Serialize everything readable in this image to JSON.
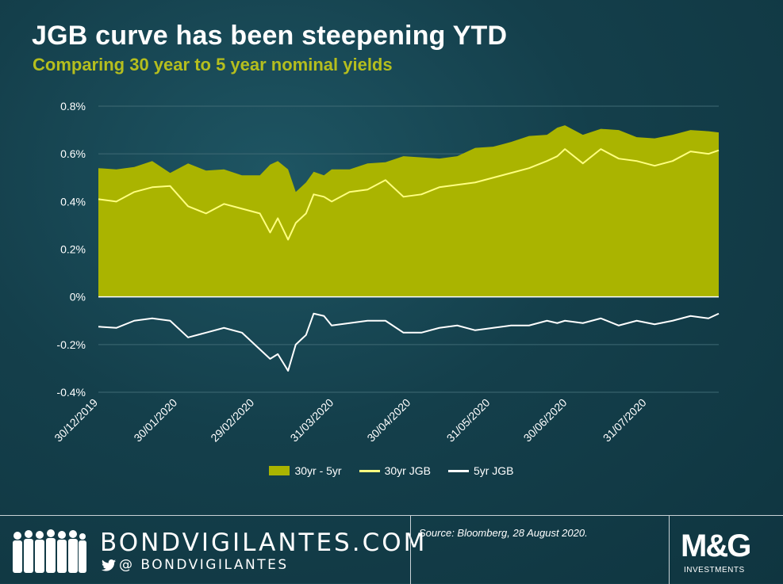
{
  "header": {
    "title": "JGB curve has been steepening YTD",
    "subtitle": "Comparing 30 year to 5 year nominal yields"
  },
  "colors": {
    "area": "#aab400",
    "line30": "#ffff80",
    "line5": "#ffffff",
    "subtitle": "#b5be1e",
    "background": "#143f4b"
  },
  "chart_data": {
    "type": "area",
    "title": "JGB curve has been steepening YTD",
    "subtitle": "Comparing 30 year to 5 year nominal yields",
    "ylim": [
      -0.4,
      0.8
    ],
    "ytick_labels": [
      "0.8%",
      "0.6%",
      "0.4%",
      "0.2%",
      "0%",
      "-0.2%",
      "-0.4%"
    ],
    "ytick_values": [
      0.8,
      0.6,
      0.4,
      0.2,
      0,
      -0.2,
      -0.4
    ],
    "xtick_labels": [
      "30/12/2019",
      "30/01/2020",
      "29/02/2020",
      "31/03/2020",
      "30/04/2020",
      "31/05/2020",
      "30/06/2020",
      "31/07/2020"
    ],
    "xtick_dates": [
      "2019-12-30",
      "2020-01-30",
      "2020-02-29",
      "2020-03-31",
      "2020-04-30",
      "2020-05-31",
      "2020-06-30",
      "2020-07-31"
    ],
    "xlim": [
      "2019-12-30",
      "2020-08-28"
    ],
    "grid": true,
    "legend_position": "bottom",
    "series": [
      {
        "name": "30yr - 5yr",
        "kind": "area",
        "x": [
          "2019-12-30",
          "2020-01-06",
          "2020-01-13",
          "2020-01-20",
          "2020-01-27",
          "2020-02-03",
          "2020-02-10",
          "2020-02-17",
          "2020-02-24",
          "2020-03-02",
          "2020-03-06",
          "2020-03-09",
          "2020-03-13",
          "2020-03-16",
          "2020-03-20",
          "2020-03-23",
          "2020-03-27",
          "2020-03-30",
          "2020-04-06",
          "2020-04-13",
          "2020-04-20",
          "2020-04-27",
          "2020-05-04",
          "2020-05-11",
          "2020-05-18",
          "2020-05-25",
          "2020-06-01",
          "2020-06-08",
          "2020-06-15",
          "2020-06-22",
          "2020-06-26",
          "2020-06-29",
          "2020-07-06",
          "2020-07-13",
          "2020-07-20",
          "2020-07-27",
          "2020-08-03",
          "2020-08-10",
          "2020-08-17",
          "2020-08-24",
          "2020-08-28"
        ],
        "values": [
          0.54,
          0.535,
          0.545,
          0.57,
          0.52,
          0.56,
          0.53,
          0.535,
          0.51,
          0.51,
          0.555,
          0.57,
          0.535,
          0.44,
          0.48,
          0.525,
          0.51,
          0.535,
          0.535,
          0.56,
          0.565,
          0.59,
          0.585,
          0.58,
          0.59,
          0.625,
          0.63,
          0.65,
          0.675,
          0.68,
          0.71,
          0.72,
          0.68,
          0.705,
          0.7,
          0.67,
          0.665,
          0.68,
          0.7,
          0.695,
          0.69
        ]
      },
      {
        "name": "30yr JGB",
        "kind": "line",
        "x": [
          "2019-12-30",
          "2020-01-06",
          "2020-01-13",
          "2020-01-20",
          "2020-01-27",
          "2020-02-03",
          "2020-02-10",
          "2020-02-17",
          "2020-02-24",
          "2020-03-02",
          "2020-03-06",
          "2020-03-09",
          "2020-03-13",
          "2020-03-16",
          "2020-03-20",
          "2020-03-23",
          "2020-03-27",
          "2020-03-30",
          "2020-04-06",
          "2020-04-13",
          "2020-04-20",
          "2020-04-27",
          "2020-05-04",
          "2020-05-11",
          "2020-05-18",
          "2020-05-25",
          "2020-06-01",
          "2020-06-08",
          "2020-06-15",
          "2020-06-22",
          "2020-06-26",
          "2020-06-29",
          "2020-07-06",
          "2020-07-13",
          "2020-07-20",
          "2020-07-27",
          "2020-08-03",
          "2020-08-10",
          "2020-08-17",
          "2020-08-24",
          "2020-08-28"
        ],
        "values": [
          0.41,
          0.4,
          0.44,
          0.46,
          0.465,
          0.38,
          0.35,
          0.39,
          0.37,
          0.35,
          0.27,
          0.33,
          0.24,
          0.31,
          0.35,
          0.43,
          0.42,
          0.4,
          0.44,
          0.45,
          0.49,
          0.42,
          0.43,
          0.46,
          0.47,
          0.48,
          0.5,
          0.52,
          0.54,
          0.57,
          0.59,
          0.62,
          0.56,
          0.62,
          0.58,
          0.57,
          0.55,
          0.57,
          0.61,
          0.6,
          0.615
        ]
      },
      {
        "name": "5yr JGB",
        "kind": "line",
        "x": [
          "2019-12-30",
          "2020-01-06",
          "2020-01-13",
          "2020-01-20",
          "2020-01-27",
          "2020-02-03",
          "2020-02-10",
          "2020-02-17",
          "2020-02-24",
          "2020-03-02",
          "2020-03-06",
          "2020-03-09",
          "2020-03-13",
          "2020-03-16",
          "2020-03-20",
          "2020-03-23",
          "2020-03-27",
          "2020-03-30",
          "2020-04-06",
          "2020-04-13",
          "2020-04-20",
          "2020-04-27",
          "2020-05-04",
          "2020-05-11",
          "2020-05-18",
          "2020-05-25",
          "2020-06-01",
          "2020-06-08",
          "2020-06-15",
          "2020-06-22",
          "2020-06-26",
          "2020-06-29",
          "2020-07-06",
          "2020-07-13",
          "2020-07-20",
          "2020-07-27",
          "2020-08-03",
          "2020-08-10",
          "2020-08-17",
          "2020-08-24",
          "2020-08-28"
        ],
        "values": [
          -0.125,
          -0.13,
          -0.1,
          -0.09,
          -0.1,
          -0.17,
          -0.15,
          -0.13,
          -0.15,
          -0.22,
          -0.26,
          -0.24,
          -0.31,
          -0.2,
          -0.16,
          -0.07,
          -0.08,
          -0.12,
          -0.11,
          -0.1,
          -0.1,
          -0.15,
          -0.15,
          -0.13,
          -0.12,
          -0.14,
          -0.13,
          -0.12,
          -0.12,
          -0.1,
          -0.11,
          -0.1,
          -0.11,
          -0.09,
          -0.12,
          -0.1,
          -0.115,
          -0.1,
          -0.08,
          -0.09,
          -0.07
        ]
      }
    ]
  },
  "legend": {
    "area_label": "30yr - 5yr",
    "line30_label": "30yr JGB",
    "line5_label": "5yr JGB"
  },
  "footer": {
    "brand": "BONDVIGILANTES.COM",
    "handle": "@ BONDVIGILANTES",
    "source": "Source: Bloomberg, 28 August 2020.",
    "logo": "M&G",
    "logo_sub": "INVESTMENTS"
  }
}
